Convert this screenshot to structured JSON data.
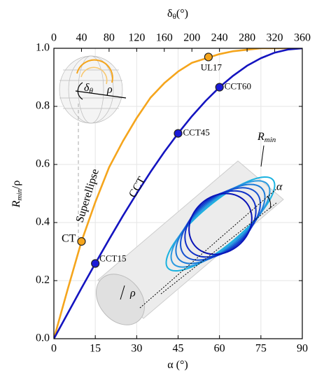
{
  "chart_data": {
    "type": "line",
    "xlabel": [
      "α",
      " (°)"
    ],
    "ylabel": [
      "R",
      "min",
      "/ρ"
    ],
    "x2label": [
      "δ",
      "θ",
      "(°)"
    ],
    "xlim": [
      0,
      90
    ],
    "xticks": [
      0,
      15,
      30,
      45,
      60,
      75,
      90
    ],
    "x2lim": [
      0,
      360
    ],
    "x2ticks": [
      0,
      40,
      80,
      120,
      160,
      200,
      240,
      280,
      320,
      360
    ],
    "ylim": [
      0,
      1
    ],
    "yticks": [
      {
        "value": 0,
        "label": "0.0"
      },
      0.2,
      0.4,
      0.6,
      0.8,
      {
        "value": 1,
        "label": "1.0"
      }
    ],
    "grid": true,
    "x": [
      0,
      5,
      10,
      15,
      20,
      25,
      30,
      35,
      40,
      45,
      50,
      55,
      60,
      65,
      70,
      75,
      80,
      85,
      90
    ],
    "series": [
      {
        "name": "Superellipse",
        "color": "#f5a51c",
        "values": [
          0,
          0.17,
          0.335,
          0.47,
          0.59,
          0.68,
          0.76,
          0.83,
          0.88,
          0.92,
          0.95,
          0.965,
          0.98,
          0.99,
          0.995,
          1.0,
          1.0,
          1.0,
          1.0
        ]
      },
      {
        "name": "CCT",
        "color": "#1414c0",
        "values": [
          0,
          0.087,
          0.174,
          0.259,
          0.342,
          0.423,
          0.5,
          0.574,
          0.643,
          0.707,
          0.766,
          0.819,
          0.866,
          0.906,
          0.94,
          0.966,
          0.985,
          0.996,
          1.0
        ]
      }
    ],
    "points": [
      {
        "label": "CT",
        "x": 10,
        "y": 0.335,
        "color": "#f5a51c"
      },
      {
        "label": "UL17",
        "x": 56,
        "y": 0.97,
        "color": "#f5a51c"
      },
      {
        "label": "CCT15",
        "x": 15,
        "y": 0.259,
        "color": "#1a1ad8"
      },
      {
        "label": "CCT45",
        "x": 45,
        "y": 0.707,
        "color": "#1a1ad8"
      },
      {
        "label": "CCT60",
        "x": 60,
        "y": 0.866,
        "color": "#1a1ad8"
      }
    ],
    "annotations": {
      "rmin": [
        "R",
        "min"
      ],
      "alpha": "α",
      "rho_bottom": "ρ",
      "rho_top": "ρ",
      "delta": [
        "δ",
        "θ"
      ]
    }
  }
}
